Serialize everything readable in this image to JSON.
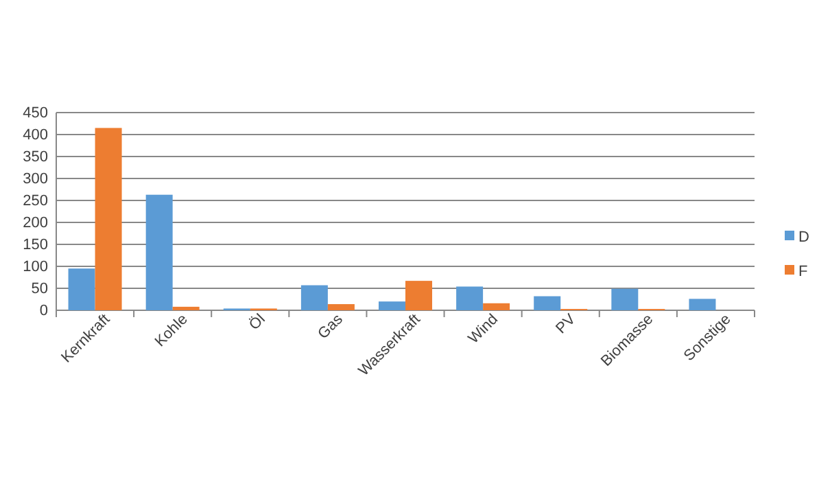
{
  "chart_data": {
    "type": "bar",
    "categories": [
      "Kernkraft",
      "Kohle",
      "Öl",
      "Gas",
      "Wasserkraft",
      "Wind",
      "PV",
      "Biomasse",
      "Sonstige"
    ],
    "series": [
      {
        "name": "D",
        "color": "#5b9bd5",
        "values": [
          95,
          263,
          4,
          57,
          20,
          54,
          32,
          49,
          26
        ]
      },
      {
        "name": "F",
        "color": "#ed7d31",
        "values": [
          415,
          8,
          4,
          14,
          67,
          16,
          3,
          3,
          0
        ]
      }
    ],
    "ylim": [
      0,
      450
    ],
    "yticks": [
      0,
      50,
      100,
      150,
      200,
      250,
      300,
      350,
      400,
      450
    ],
    "grid": "y",
    "legend": "right"
  }
}
